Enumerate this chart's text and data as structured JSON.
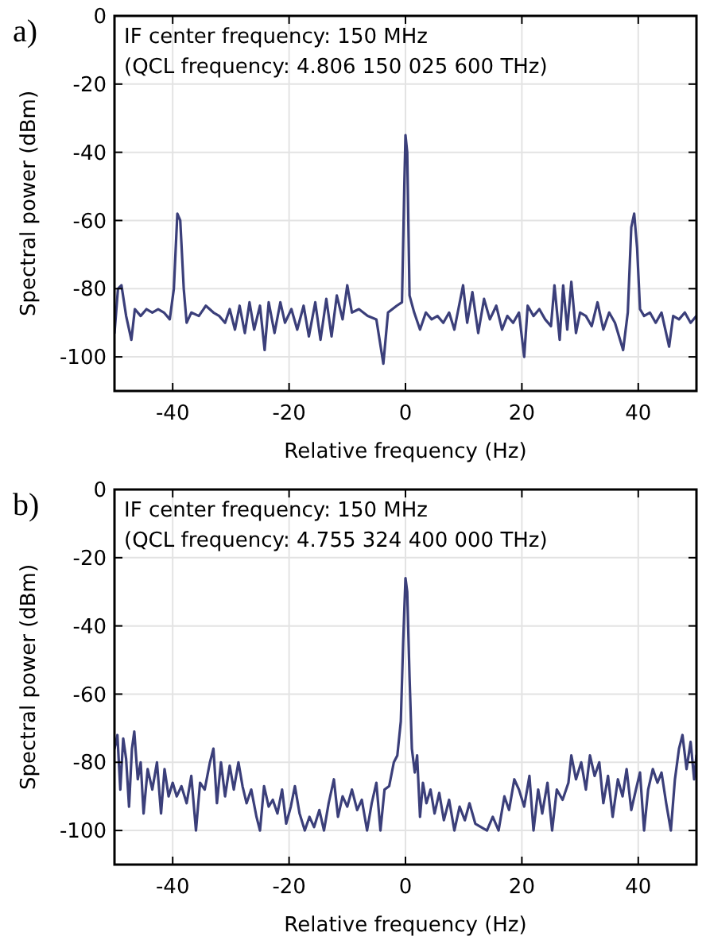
{
  "chart_data": [
    {
      "type": "line",
      "title": "a)",
      "xlabel": "Relative frequency (Hz)",
      "ylabel": "Spectral power (dBm)",
      "annotations": [
        "IF center frequency: 150 MHz",
        "(QCL frequency: 4.806 150 025 600 THz)"
      ],
      "xlim": [
        -50,
        50
      ],
      "ylim": [
        -110,
        0
      ],
      "xticks": [
        -40,
        -20,
        0,
        20,
        40
      ],
      "yticks": [
        0,
        -20,
        -40,
        -60,
        -80,
        -100
      ],
      "grid": true,
      "marker": "none",
      "line_style": "solid",
      "series": [
        {
          "color": "#3b3f7a",
          "x": [
            -50,
            -49.4,
            -48.8,
            -48,
            -47.1,
            -46.5,
            -45.5,
            -44.5,
            -43.5,
            -42.5,
            -41.5,
            -40.5,
            -39.8,
            -39.2,
            -38.7,
            -38.1,
            -37.6,
            -36.8,
            -35.5,
            -34.3,
            -33,
            -32,
            -31,
            -30.2,
            -29.3,
            -28.5,
            -27.6,
            -26.8,
            -26,
            -25,
            -24.2,
            -23.5,
            -22.5,
            -21.5,
            -20.7,
            -19.6,
            -18.6,
            -17.5,
            -16.6,
            -15.5,
            -14.6,
            -13.6,
            -12.7,
            -11.8,
            -10.8,
            -10,
            -9.2,
            -8,
            -6.5,
            -5,
            -3.8,
            -3,
            -1.5,
            -0.6,
            -0.2,
            0,
            0.3,
            0.7,
            1.5,
            2.5,
            3.5,
            4.5,
            5.5,
            6.5,
            7.5,
            8.4,
            9.9,
            10.6,
            11.5,
            12.5,
            13.5,
            14.5,
            15.6,
            16.6,
            17.5,
            18.5,
            19.5,
            20.4,
            21,
            22,
            23,
            24,
            25,
            25.6,
            26.5,
            27.1,
            27.8,
            28.5,
            29.3,
            30,
            31,
            32,
            33,
            34,
            35,
            36,
            37.4,
            38.2,
            38.8,
            39.3,
            39.8,
            40.3,
            41,
            42,
            43,
            44,
            45.3,
            46,
            47,
            48,
            49,
            50
          ],
          "values": [
            -93,
            -80,
            -79,
            -88,
            -95,
            -86,
            -88,
            -86,
            -87,
            -86,
            -87,
            -89,
            -80,
            -58,
            -60,
            -80,
            -90,
            -87,
            -88,
            -85,
            -87,
            -88,
            -90,
            -86,
            -92,
            -85,
            -93,
            -84,
            -92,
            -85,
            -98,
            -84,
            -93,
            -84,
            -90,
            -86,
            -92,
            -85,
            -94,
            -84,
            -95,
            -83,
            -94,
            -82,
            -89,
            -79,
            -87,
            -86,
            -88,
            -89,
            -102,
            -87,
            -85,
            -84,
            -50,
            -35,
            -40,
            -82,
            -87,
            -92,
            -87,
            -89,
            -88,
            -90,
            -87,
            -92,
            -79,
            -90,
            -81,
            -93,
            -83,
            -89,
            -85,
            -92,
            -88,
            -90,
            -87,
            -100,
            -85,
            -88,
            -86,
            -89,
            -91,
            -79,
            -95,
            -79,
            -92,
            -78,
            -93,
            -87,
            -88,
            -91,
            -84,
            -92,
            -87,
            -90,
            -98,
            -87,
            -62,
            -58,
            -68,
            -86,
            -88,
            -87,
            -90,
            -87,
            -97,
            -88,
            -89,
            -87,
            -90,
            -88
          ]
        }
      ]
    },
    {
      "type": "line",
      "title": "b)",
      "xlabel": "Relative frequency (Hz)",
      "ylabel": "Spectral power (dBm)",
      "annotations": [
        "IF center frequency: 150 MHz",
        "(QCL frequency: 4.755 324 400 000 THz)"
      ],
      "xlim": [
        -50,
        50
      ],
      "ylim": [
        -110,
        0
      ],
      "xticks": [
        -40,
        -20,
        0,
        20,
        40
      ],
      "yticks": [
        0,
        -20,
        -40,
        -60,
        -80,
        -100
      ],
      "grid": true,
      "marker": "none",
      "line_style": "solid",
      "series": [
        {
          "color": "#3b3f7a",
          "x": [
            -50,
            -49.5,
            -49,
            -48.5,
            -48,
            -47.5,
            -47,
            -46.6,
            -46,
            -45.5,
            -45,
            -44.3,
            -43.5,
            -42.7,
            -42,
            -41.4,
            -40.7,
            -40,
            -39.3,
            -38.5,
            -37.6,
            -36.8,
            -36,
            -35.3,
            -34.5,
            -33.6,
            -33,
            -32.4,
            -31.7,
            -31,
            -30.2,
            -29.5,
            -28.7,
            -28,
            -27.3,
            -26.5,
            -25.6,
            -25,
            -24.3,
            -23.5,
            -22.8,
            -22,
            -21.2,
            -20.5,
            -19.7,
            -19,
            -18.2,
            -17.3,
            -16.5,
            -15.7,
            -14.8,
            -14,
            -13.2,
            -12.3,
            -11.6,
            -10.8,
            -10,
            -9.2,
            -8.3,
            -7.5,
            -6.6,
            -5.8,
            -5,
            -4.3,
            -3.6,
            -2.8,
            -2,
            -1.4,
            -0.8,
            -0.4,
            0,
            0.3,
            0.7,
            1.1,
            1.6,
            2,
            2.5,
            3,
            3.6,
            4.3,
            5,
            5.8,
            6.6,
            7.5,
            8.4,
            9.3,
            10.2,
            11,
            12,
            13,
            14,
            15,
            16,
            17,
            17.8,
            18.7,
            19.5,
            20.4,
            21.3,
            22,
            22.8,
            23.5,
            24.4,
            25.2,
            26,
            27,
            28,
            28.5,
            29.3,
            30.2,
            31,
            31.7,
            32.5,
            33.3,
            34,
            34.8,
            35.6,
            36.5,
            37.3,
            38,
            38.8,
            39.6,
            40.3,
            41,
            41.7,
            42.5,
            43.3,
            44,
            44.8,
            45.6,
            46.3,
            47,
            47.6,
            48.3,
            49,
            49.6,
            50
          ],
          "values": [
            -76,
            -72,
            -88,
            -73,
            -79,
            -93,
            -76,
            -71,
            -85,
            -80,
            -95,
            -82,
            -88,
            -80,
            -95,
            -82,
            -90,
            -86,
            -90,
            -87,
            -92,
            -84,
            -100,
            -86,
            -88,
            -80,
            -76,
            -92,
            -80,
            -90,
            -81,
            -88,
            -80,
            -87,
            -92,
            -88,
            -96,
            -100,
            -87,
            -93,
            -91,
            -95,
            -88,
            -98,
            -93,
            -87,
            -95,
            -100,
            -96,
            -99,
            -94,
            -100,
            -92,
            -85,
            -96,
            -90,
            -93,
            -88,
            -94,
            -91,
            -100,
            -92,
            -86,
            -100,
            -88,
            -87,
            -80,
            -78,
            -68,
            -45,
            -26,
            -30,
            -55,
            -76,
            -83,
            -78,
            -96,
            -86,
            -92,
            -88,
            -95,
            -89,
            -97,
            -91,
            -100,
            -93,
            -97,
            -92,
            -98,
            -99,
            -100,
            -96,
            -100,
            -90,
            -94,
            -85,
            -88,
            -93,
            -84,
            -100,
            -88,
            -95,
            -86,
            -100,
            -88,
            -91,
            -86,
            -78,
            -85,
            -80,
            -88,
            -78,
            -84,
            -80,
            -92,
            -84,
            -96,
            -85,
            -90,
            -82,
            -94,
            -88,
            -83,
            -100,
            -88,
            -82,
            -86,
            -83,
            -92,
            -100,
            -85,
            -76,
            -72,
            -82,
            -74,
            -85,
            -78
          ]
        }
      ]
    }
  ]
}
